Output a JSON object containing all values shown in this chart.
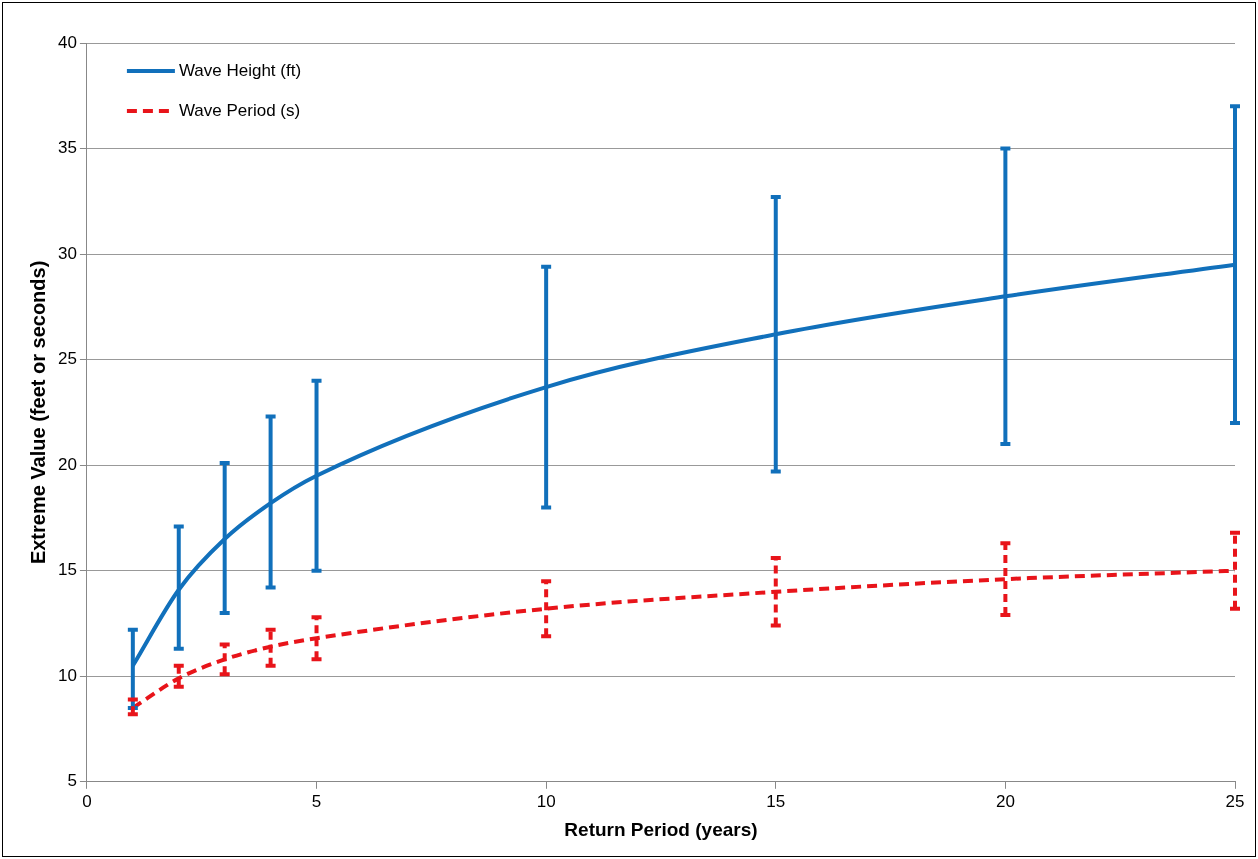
{
  "chart_data": {
    "type": "line",
    "xlabel": "Return Period (years)",
    "ylabel": "Extreme Value (feet or seconds)",
    "x": [
      1,
      2,
      3,
      4,
      5,
      10,
      15,
      20,
      25
    ],
    "series": [
      {
        "name": "Wave Height (ft)",
        "color": "#1170bb",
        "line_style": "solid",
        "values": [
          10.5,
          14.1,
          16.5,
          18.2,
          19.5,
          23.7,
          26.2,
          28.0,
          29.5
        ],
        "errors": [
          [
            8.5,
            12.2
          ],
          [
            11.3,
            17.1
          ],
          [
            13.0,
            20.1
          ],
          [
            14.2,
            22.3
          ],
          [
            15.0,
            24.0
          ],
          [
            18.0,
            29.4
          ],
          [
            19.7,
            32.7
          ],
          [
            21.0,
            35.0
          ],
          [
            22.0,
            37.0
          ]
        ]
      },
      {
        "name": "Wave Period (s)",
        "color": "#e8141a",
        "line_style": "dashed",
        "values": [
          8.5,
          9.9,
          10.8,
          11.4,
          11.8,
          13.2,
          14.0,
          14.6,
          15.0
        ],
        "errors": [
          [
            8.2,
            8.9
          ],
          [
            9.5,
            10.5
          ],
          [
            10.1,
            11.5
          ],
          [
            10.5,
            12.2
          ],
          [
            10.8,
            12.8
          ],
          [
            11.9,
            14.5
          ],
          [
            12.4,
            15.6
          ],
          [
            12.9,
            16.3
          ],
          [
            13.2,
            16.8
          ]
        ]
      }
    ],
    "xlim": [
      0,
      25
    ],
    "xticks": [
      0,
      5,
      10,
      15,
      20,
      25
    ],
    "ylim": [
      5,
      40
    ],
    "yticks": [
      5,
      10,
      15,
      20,
      25,
      30,
      35,
      40
    ],
    "grid": "y",
    "legend": "top left",
    "marker": "none"
  }
}
